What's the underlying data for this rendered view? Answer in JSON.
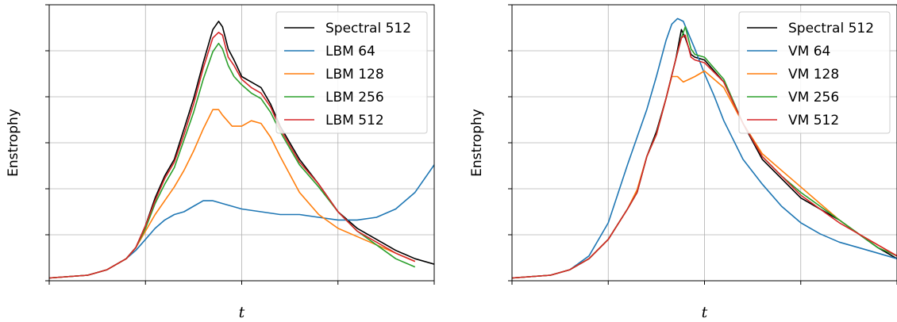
{
  "chart_data": [
    {
      "type": "line",
      "xlabel": "t",
      "ylabel": "Enstrophy",
      "xlim": [
        0,
        20
      ],
      "ylim": [
        0,
        100
      ],
      "grid": true,
      "legend_position": "top-right",
      "tick_labels_shown": false,
      "series": [
        {
          "name": "Spectral 512",
          "color": "#000000",
          "x": [
            0,
            2,
            3,
            4,
            4.5,
            5,
            5.5,
            6,
            6.5,
            7,
            7.5,
            8,
            8.5,
            8.8,
            9,
            9.3,
            9.6,
            10,
            10.5,
            11,
            11.5,
            12,
            12.5,
            13,
            14,
            15,
            16,
            17,
            18,
            19,
            20
          ],
          "y": [
            1,
            2,
            4,
            8,
            12,
            20,
            30,
            38,
            44,
            55,
            66,
            79,
            91,
            94,
            92,
            84,
            80,
            74,
            72,
            70,
            64,
            56,
            50,
            44,
            35,
            25,
            19,
            15,
            11,
            8,
            6
          ]
        },
        {
          "name": "LBM 64",
          "color": "#1f77b4",
          "x": [
            0,
            2,
            3,
            4,
            4.5,
            5,
            5.5,
            6,
            6.5,
            7,
            7.5,
            8,
            8.5,
            9,
            10,
            11,
            12,
            13,
            14,
            15,
            16,
            17,
            18,
            19,
            20
          ],
          "y": [
            1,
            2,
            4,
            8,
            11,
            15,
            19,
            22,
            24,
            25,
            27,
            29,
            29,
            28,
            26,
            25,
            24,
            24,
            23,
            22,
            22,
            23,
            26,
            32,
            42
          ]
        },
        {
          "name": "LBM 128",
          "color": "#ff7f0e",
          "x": [
            0,
            2,
            3,
            4,
            4.5,
            5,
            5.5,
            6,
            6.5,
            7,
            7.5,
            8,
            8.5,
            8.8,
            9,
            9.5,
            10,
            10.5,
            11,
            11.5,
            12,
            13,
            14,
            15,
            16,
            17,
            18,
            19
          ],
          "y": [
            1,
            2,
            4,
            8,
            12,
            18,
            24,
            29,
            34,
            40,
            47,
            55,
            62,
            62,
            60,
            56,
            56,
            58,
            57,
            52,
            45,
            32,
            24,
            19,
            16,
            13,
            10,
            7
          ]
        },
        {
          "name": "LBM 256",
          "color": "#2ca02c",
          "x": [
            0,
            2,
            3,
            4,
            4.5,
            5,
            5.5,
            6,
            6.5,
            7,
            7.5,
            8,
            8.5,
            8.8,
            9,
            9.3,
            9.6,
            10,
            10.5,
            11,
            11.5,
            12,
            12.5,
            13,
            14,
            15,
            16,
            17,
            18,
            19
          ],
          "y": [
            1,
            2,
            4,
            8,
            12,
            19,
            28,
            35,
            41,
            51,
            61,
            73,
            83,
            86,
            84,
            78,
            74,
            71,
            68,
            66,
            61,
            54,
            48,
            42,
            34,
            25,
            18,
            13,
            8,
            5
          ]
        },
        {
          "name": "LBM 512",
          "color": "#d62728",
          "x": [
            0,
            2,
            3,
            4,
            4.5,
            5,
            5.5,
            6,
            6.5,
            7,
            7.5,
            8,
            8.5,
            8.8,
            9,
            9.3,
            9.6,
            10,
            10.5,
            11,
            11.5,
            12,
            12.5,
            13,
            14,
            15,
            16,
            17,
            18,
            19
          ],
          "y": [
            1,
            2,
            4,
            8,
            12,
            20,
            29,
            37,
            43,
            53,
            64,
            77,
            88,
            90,
            89,
            81,
            78,
            73,
            70,
            68,
            63,
            55,
            49,
            43,
            35,
            25,
            18,
            14,
            10,
            7
          ]
        }
      ]
    },
    {
      "type": "line",
      "xlabel": "t",
      "ylabel": "Enstrophy",
      "xlim": [
        0,
        20
      ],
      "ylim": [
        0,
        100
      ],
      "grid": true,
      "legend_position": "top-right",
      "tick_labels_shown": false,
      "series": [
        {
          "name": "Spectral 512",
          "color": "#000000",
          "x": [
            0,
            2,
            3,
            4,
            5,
            6,
            6.5,
            7,
            7.5,
            8,
            8.5,
            8.8,
            9,
            9.3,
            9.5,
            10,
            11,
            12,
            13,
            14,
            15,
            16,
            17,
            18,
            19,
            20
          ],
          "y": [
            1,
            2,
            4,
            8,
            15,
            26,
            32,
            45,
            54,
            66,
            80,
            91,
            88,
            82,
            81,
            80,
            72,
            57,
            44,
            37,
            30,
            26,
            22,
            17,
            12,
            8
          ]
        },
        {
          "name": "VM 64",
          "color": "#1f77b4",
          "x": [
            0,
            2,
            3,
            4,
            5,
            6,
            6.5,
            7,
            7.5,
            8,
            8.3,
            8.6,
            8.9,
            9.2,
            9.5,
            10,
            10.5,
            11,
            12,
            13,
            14,
            15,
            16,
            17,
            18,
            19,
            20
          ],
          "y": [
            1,
            2,
            4,
            9,
            21,
            42,
            52,
            62,
            74,
            87,
            93,
            95,
            94,
            89,
            84,
            75,
            67,
            58,
            44,
            35,
            27,
            21,
            17,
            14,
            12,
            10,
            8
          ]
        },
        {
          "name": "VM 128",
          "color": "#ff7f0e",
          "x": [
            0,
            2,
            3,
            4,
            5,
            6,
            6.5,
            7,
            7.5,
            8,
            8.3,
            8.6,
            8.9,
            9.2,
            9.5,
            10,
            11,
            12,
            13,
            14,
            15,
            16,
            17,
            18,
            19,
            20
          ],
          "y": [
            1,
            2,
            4,
            8,
            15,
            26,
            33,
            45,
            53,
            66,
            74,
            74,
            72,
            73,
            74,
            76,
            70,
            57,
            46,
            40,
            34,
            28,
            22,
            17,
            13,
            9
          ]
        },
        {
          "name": "VM 256",
          "color": "#2ca02c",
          "x": [
            0,
            2,
            3,
            4,
            5,
            6,
            6.5,
            7,
            7.5,
            8,
            8.5,
            8.8,
            9,
            9.3,
            9.5,
            10,
            11,
            12,
            13,
            14,
            15,
            16,
            17,
            18,
            19,
            20
          ],
          "y": [
            1,
            2,
            4,
            8,
            15,
            26,
            32,
            45,
            53,
            66,
            80,
            88,
            92,
            84,
            82,
            81,
            73,
            57,
            45,
            38,
            32,
            27,
            22,
            17,
            12,
            9
          ]
        },
        {
          "name": "VM 512",
          "color": "#d62728",
          "x": [
            0,
            2,
            3,
            4,
            5,
            6,
            6.5,
            7,
            7.5,
            8,
            8.5,
            8.8,
            9,
            9.3,
            9.5,
            10,
            11,
            12,
            13,
            14,
            15,
            16,
            17,
            18,
            19,
            20
          ],
          "y": [
            1,
            2,
            4,
            8,
            15,
            26,
            32,
            45,
            53,
            66,
            80,
            88,
            89,
            81,
            80,
            79,
            72,
            57,
            45,
            38,
            31,
            26,
            21,
            17,
            13,
            9
          ]
        }
      ]
    }
  ]
}
